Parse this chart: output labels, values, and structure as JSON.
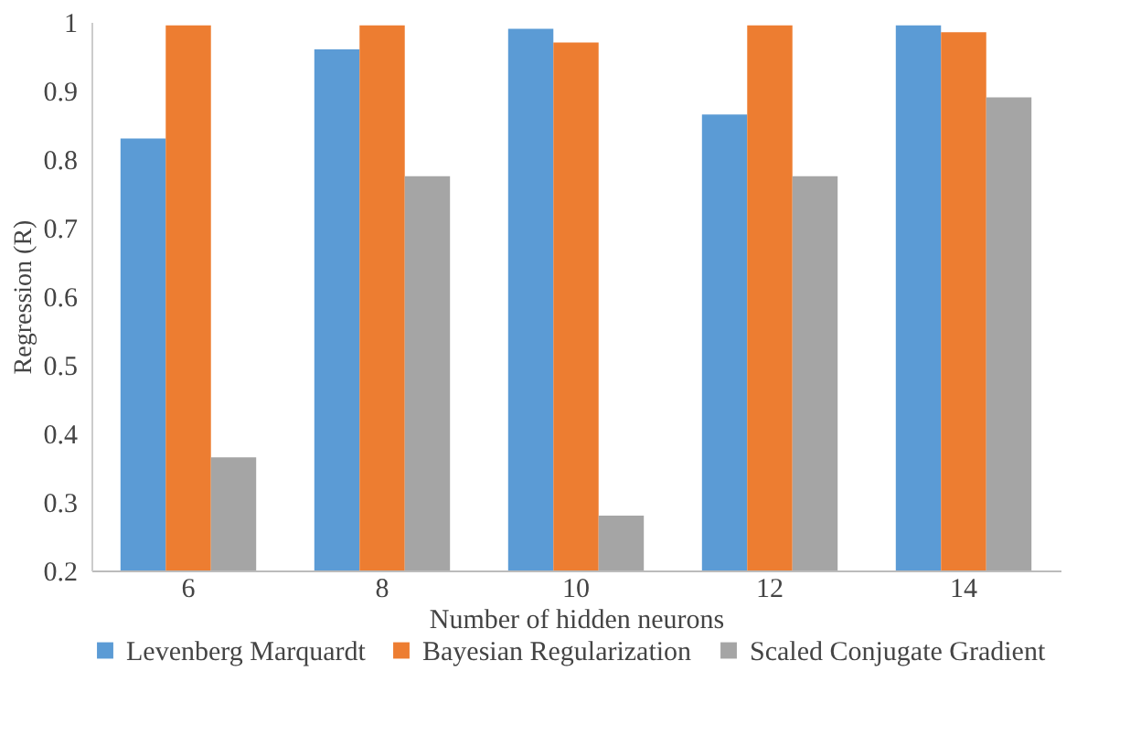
{
  "chart_data": {
    "type": "bar",
    "xlabel": "Number of hidden neurons",
    "ylabel": "Regression (R)",
    "categories": [
      "6",
      "8",
      "10",
      "12",
      "14"
    ],
    "series": [
      {
        "name": "Levenberg Marquardt",
        "color": "#5b9bd5",
        "values": [
          0.83,
          0.96,
          0.99,
          0.865,
          0.995
        ]
      },
      {
        "name": "Bayesian Regularization",
        "color": "#ed7d31",
        "values": [
          0.995,
          0.995,
          0.97,
          0.995,
          0.985
        ]
      },
      {
        "name": "Scaled Conjugate Gradient",
        "color": "#a5a5a5",
        "values": [
          0.365,
          0.775,
          0.28,
          0.775,
          0.89
        ]
      }
    ],
    "ylim": [
      0.2,
      1
    ],
    "yticks": [
      0.2,
      0.3,
      0.4,
      0.5,
      0.6,
      0.7,
      0.8,
      0.9,
      1
    ],
    "grid": false,
    "legend": "bottom"
  }
}
